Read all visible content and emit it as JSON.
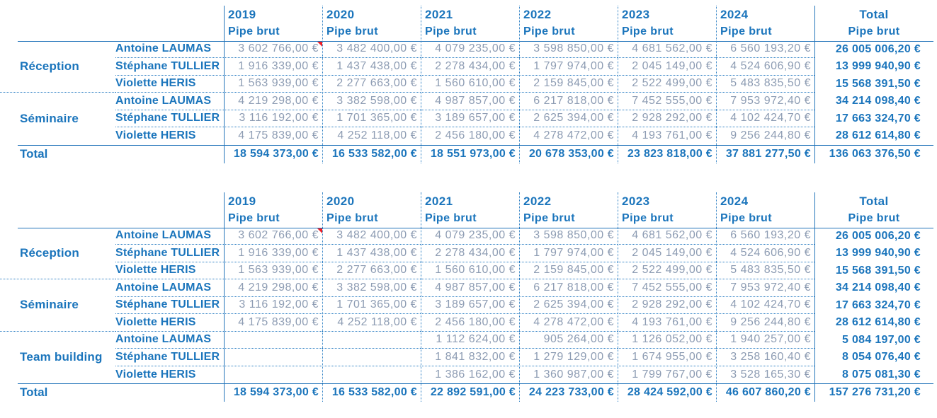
{
  "app": {
    "description": "Spreadsheet pivot tables - Pipe brut by year, activity and salesperson"
  },
  "colors": {
    "label_blue": "#1b75bc",
    "value_gray": "#8d9cb3",
    "solid_border": "#2274ba",
    "dotted_border": "#2e80c4",
    "comment_marker_red": "#ee1c25",
    "background": "#ffffff"
  },
  "columns": {
    "years": [
      "2019",
      "2020",
      "2021",
      "2022",
      "2023",
      "2024"
    ],
    "year_subtitle": "Pipe brut",
    "total_label": "Total",
    "total_subtitle": "Pipe brut"
  },
  "tables": [
    {
      "title": "upper-pivot-without-team-building",
      "groups": [
        {
          "label": "Réception",
          "rows": [
            {
              "name": "Antoine LAUMAS",
              "has_comment": true,
              "values": [
                "3 602 766,00 €",
                "3 482 400,00 €",
                "4 079 235,00 €",
                "3 598 850,00 €",
                "4 681 562,00 €",
                "6 560 193,20 €"
              ],
              "total": "26 005 006,20 €"
            },
            {
              "name": "Stéphane TULLIER",
              "values": [
                "1 916 339,00 €",
                "1 437 438,00 €",
                "2 278 434,00 €",
                "1 797 974,00 €",
                "2 045 149,00 €",
                "4 524 606,90 €"
              ],
              "total": "13 999 940,90 €"
            },
            {
              "name": "Violette HERIS",
              "values": [
                "1 563 939,00 €",
                "2 277 663,00 €",
                "1 560 610,00 €",
                "2 159 845,00 €",
                "2 522 499,00 €",
                "5 483 835,50 €"
              ],
              "total": "15 568 391,50 €"
            }
          ]
        },
        {
          "label": "Séminaire",
          "rows": [
            {
              "name": "Antoine LAUMAS",
              "values": [
                "4 219 298,00 €",
                "3 382 598,00 €",
                "4 987 857,00 €",
                "6 217 818,00 €",
                "7 452 555,00 €",
                "7 953 972,40 €"
              ],
              "total": "34 214 098,40 €"
            },
            {
              "name": "Stéphane TULLIER",
              "values": [
                "3 116 192,00 €",
                "1 701 365,00 €",
                "3 189 657,00 €",
                "2 625 394,00 €",
                "2 928 292,00 €",
                "4 102 424,70 €"
              ],
              "total": "17 663 324,70 €"
            },
            {
              "name": "Violette HERIS",
              "values": [
                "4 175 839,00 €",
                "4 252 118,00 €",
                "2 456 180,00 €",
                "4 278 472,00 €",
                "4 193 761,00 €",
                "9 256 244,80 €"
              ],
              "total": "28 612 614,80 €"
            }
          ]
        }
      ],
      "total_row": {
        "label": "Total",
        "values": [
          "18 594 373,00 €",
          "16 533 582,00 €",
          "18 551 973,00 €",
          "20 678 353,00 €",
          "23 823 818,00 €",
          "37 881 277,50 €"
        ],
        "total": "136 063 376,50 €"
      }
    },
    {
      "title": "lower-pivot-with-team-building",
      "groups": [
        {
          "label": "Réception",
          "rows": [
            {
              "name": "Antoine LAUMAS",
              "has_comment": true,
              "values": [
                "3 602 766,00 €",
                "3 482 400,00 €",
                "4 079 235,00 €",
                "3 598 850,00 €",
                "4 681 562,00 €",
                "6 560 193,20 €"
              ],
              "total": "26 005 006,20 €"
            },
            {
              "name": "Stéphane TULLIER",
              "values": [
                "1 916 339,00 €",
                "1 437 438,00 €",
                "2 278 434,00 €",
                "1 797 974,00 €",
                "2 045 149,00 €",
                "4 524 606,90 €"
              ],
              "total": "13 999 940,90 €"
            },
            {
              "name": "Violette HERIS",
              "values": [
                "1 563 939,00 €",
                "2 277 663,00 €",
                "1 560 610,00 €",
                "2 159 845,00 €",
                "2 522 499,00 €",
                "5 483 835,50 €"
              ],
              "total": "15 568 391,50 €"
            }
          ]
        },
        {
          "label": "Séminaire",
          "rows": [
            {
              "name": "Antoine LAUMAS",
              "values": [
                "4 219 298,00 €",
                "3 382 598,00 €",
                "4 987 857,00 €",
                "6 217 818,00 €",
                "7 452 555,00 €",
                "7 953 972,40 €"
              ],
              "total": "34 214 098,40 €"
            },
            {
              "name": "Stéphane TULLIER",
              "values": [
                "3 116 192,00 €",
                "1 701 365,00 €",
                "3 189 657,00 €",
                "2 625 394,00 €",
                "2 928 292,00 €",
                "4 102 424,70 €"
              ],
              "total": "17 663 324,70 €"
            },
            {
              "name": "Violette HERIS",
              "values": [
                "4 175 839,00 €",
                "4 252 118,00 €",
                "2 456 180,00 €",
                "4 278 472,00 €",
                "4 193 761,00 €",
                "9 256 244,80 €"
              ],
              "total": "28 612 614,80 €"
            }
          ]
        },
        {
          "label": "Team building",
          "rows": [
            {
              "name": "Antoine LAUMAS",
              "values": [
                "",
                "",
                "1 112 624,00 €",
                "905 264,00 €",
                "1 126 052,00 €",
                "1 940 257,00 €"
              ],
              "total": "5 084 197,00 €"
            },
            {
              "name": "Stéphane TULLIER",
              "values": [
                "",
                "",
                "1 841 832,00 €",
                "1 279 129,00 €",
                "1 674 955,00 €",
                "3 258 160,40 €"
              ],
              "total": "8 054 076,40 €"
            },
            {
              "name": "Violette HERIS",
              "values": [
                "",
                "",
                "1 386 162,00 €",
                "1 360 987,00 €",
                "1 799 767,00 €",
                "3 528 165,30 €"
              ],
              "total": "8 075 081,30 €"
            }
          ]
        }
      ],
      "total_row": {
        "label": "Total",
        "values": [
          "18 594 373,00 €",
          "16 533 582,00 €",
          "22 892 591,00 €",
          "24 223 733,00 €",
          "28 424 592,00 €",
          "46 607 860,20 €"
        ],
        "total": "157 276 731,20 €"
      }
    }
  ]
}
